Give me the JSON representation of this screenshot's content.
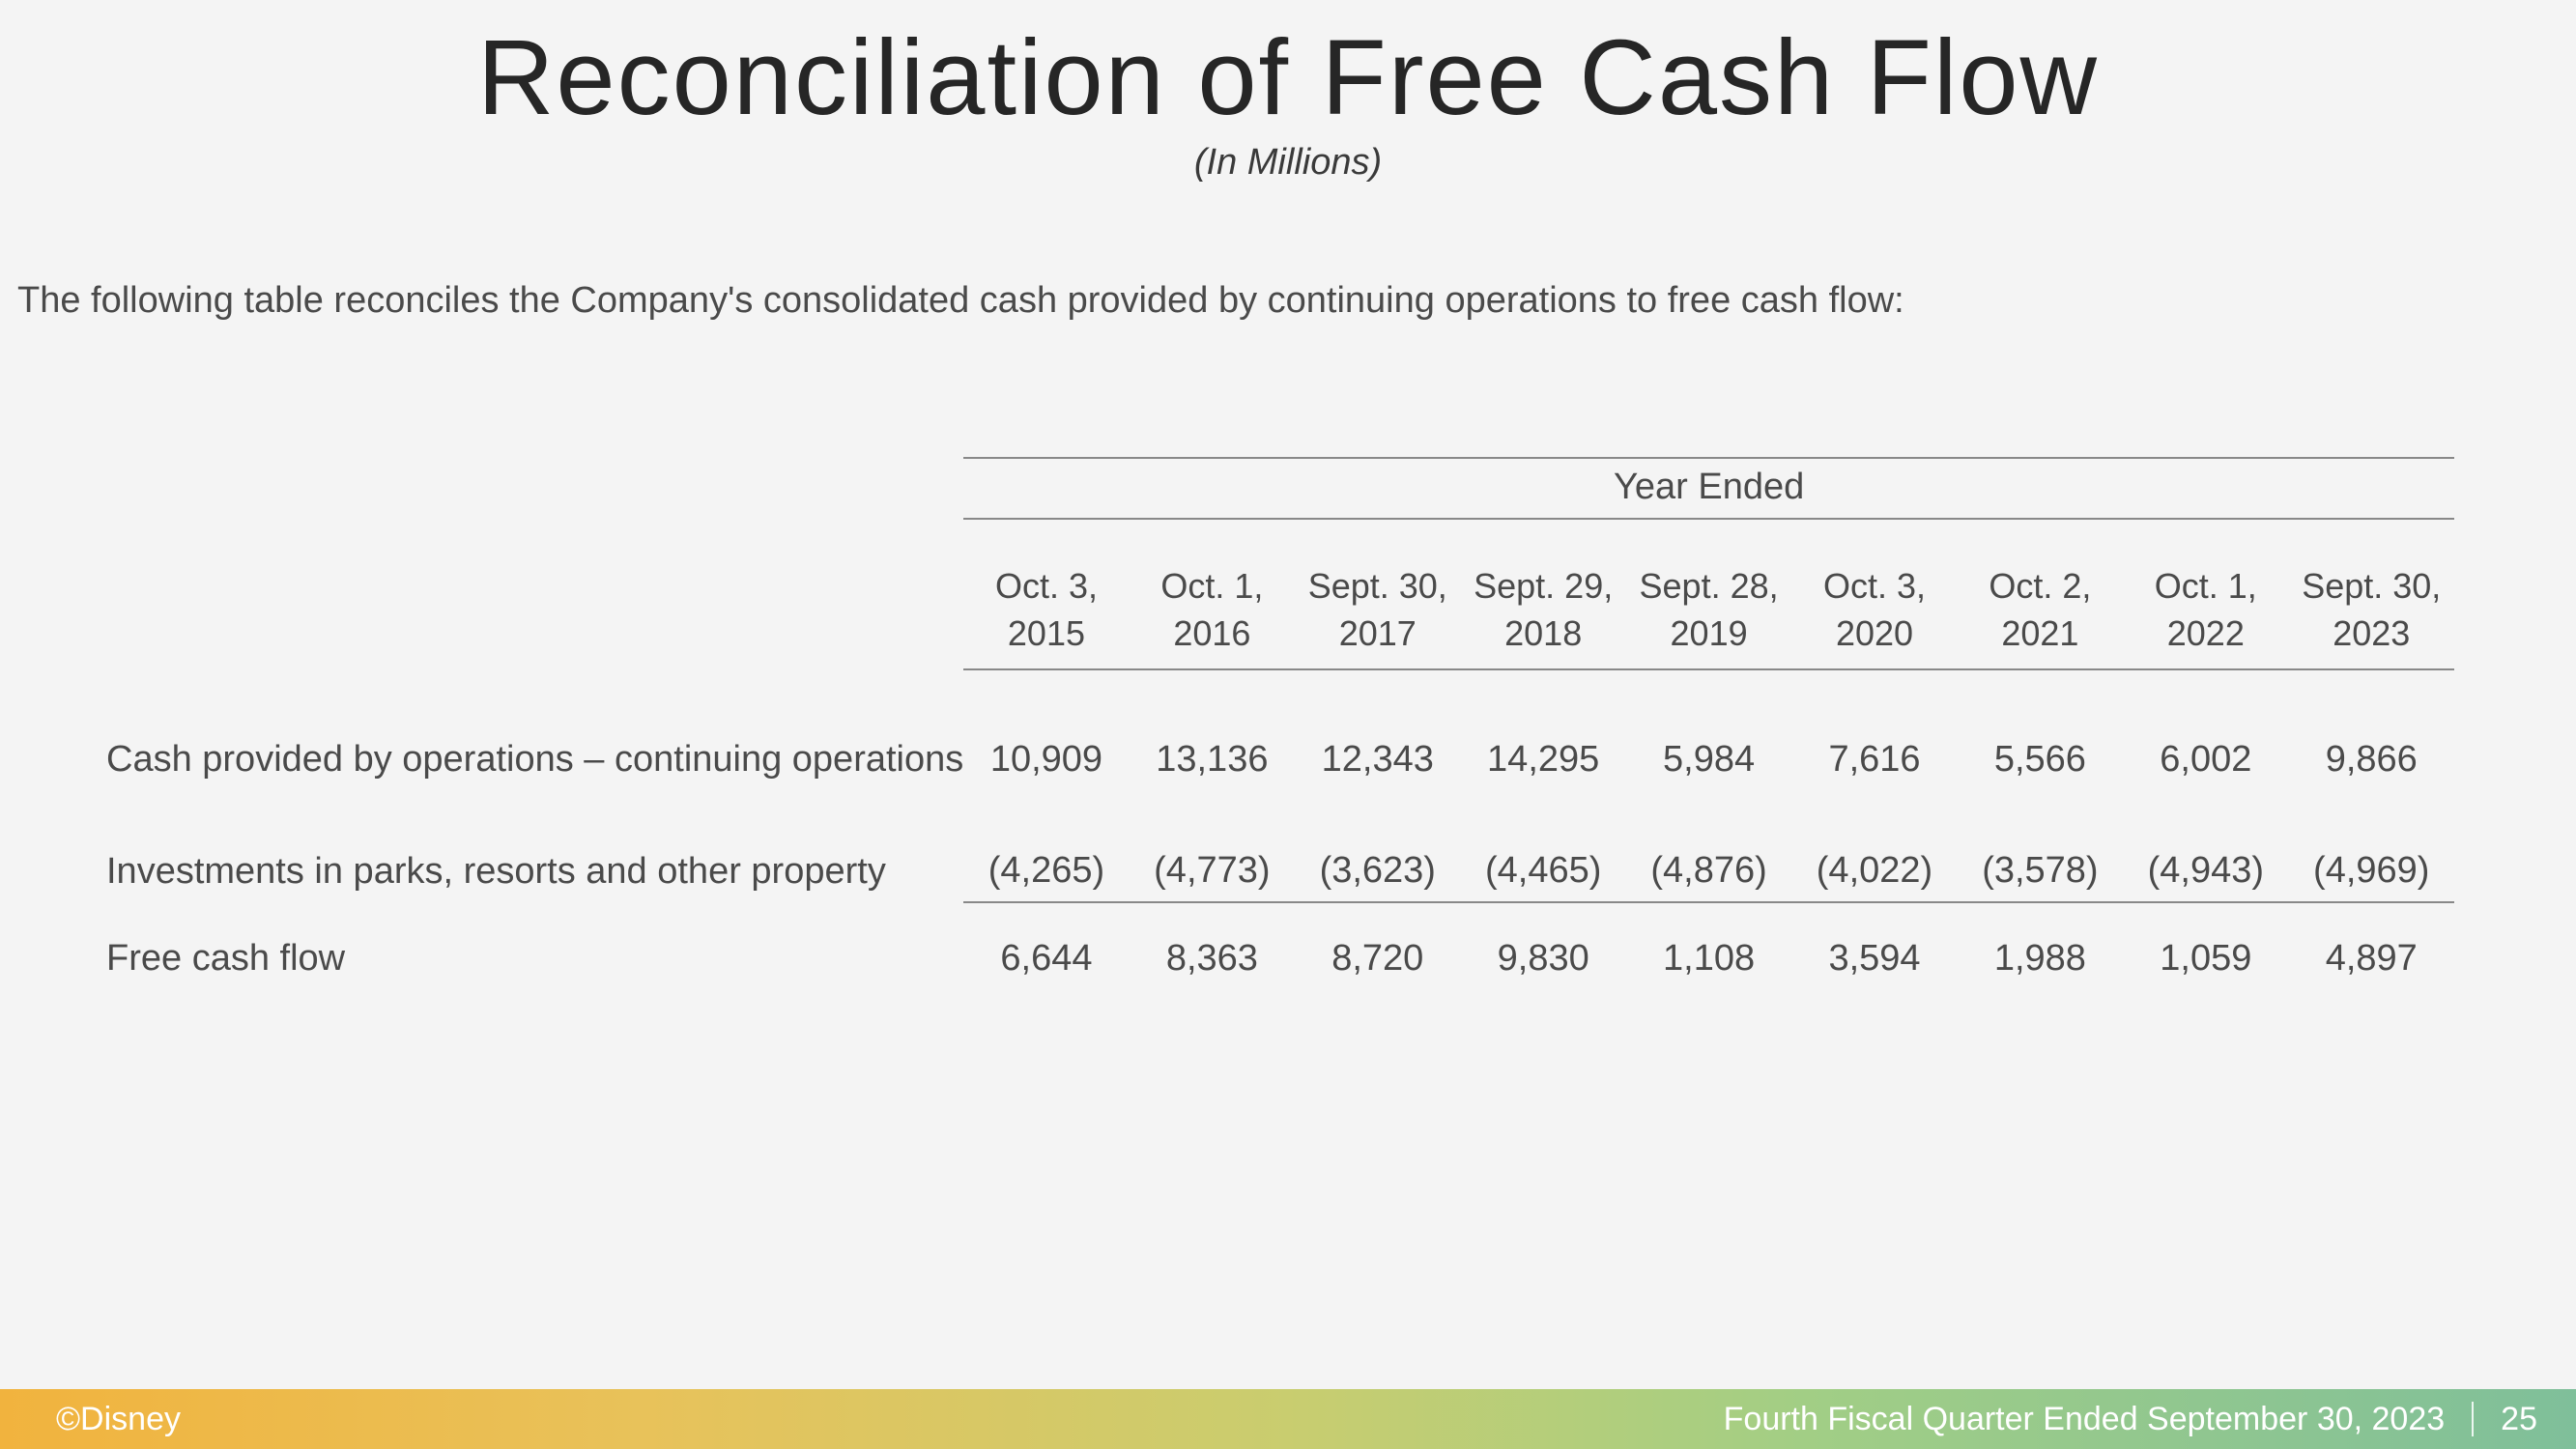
{
  "title": "Reconciliation of Free Cash Flow",
  "subtitle": "(In Millions)",
  "intro": "The following table reconciles the Company's consolidated cash provided by continuing operations to free cash flow:",
  "table": {
    "year_ended_label": "Year Ended",
    "columns": [
      "Oct. 3,\n2015",
      "Oct. 1,\n2016",
      "Sept. 30,\n2017",
      "Sept. 29,\n2018",
      "Sept. 28,\n2019",
      "Oct. 3,\n2020",
      "Oct. 2,\n2021",
      "Oct. 1,\n2022",
      "Sept. 30,\n2023"
    ],
    "rows": [
      {
        "label": "Cash provided by operations – continuing operations",
        "values": [
          "10,909",
          "13,136",
          "12,343",
          "14,295",
          "5,984",
          "7,616",
          "5,566",
          "6,002",
          "9,866"
        ],
        "underline": false
      },
      {
        "label": "Investments in parks, resorts and other property",
        "values": [
          "(4,265)",
          "(4,773)",
          "(3,623)",
          "(4,465)",
          "(4,876)",
          "(4,022)",
          "(3,578)",
          "(4,943)",
          "(4,969)"
        ],
        "underline": true
      },
      {
        "label": "Free cash flow",
        "values": [
          "6,644",
          "8,363",
          "8,720",
          "9,830",
          "1,108",
          "3,594",
          "1,988",
          "1,059",
          "4,897"
        ],
        "underline": false
      }
    ]
  },
  "footer": {
    "copyright": "©Disney",
    "period": "Fourth Fiscal Quarter Ended September 30, 2023",
    "page": "25"
  },
  "style": {
    "background": "#f4f4f4",
    "title_color": "#262626",
    "text_color": "#4a4a4a",
    "border_color": "#888888",
    "footer_gradient_start": "#f1b33e",
    "footer_gradient_end": "#7fbf9a"
  }
}
